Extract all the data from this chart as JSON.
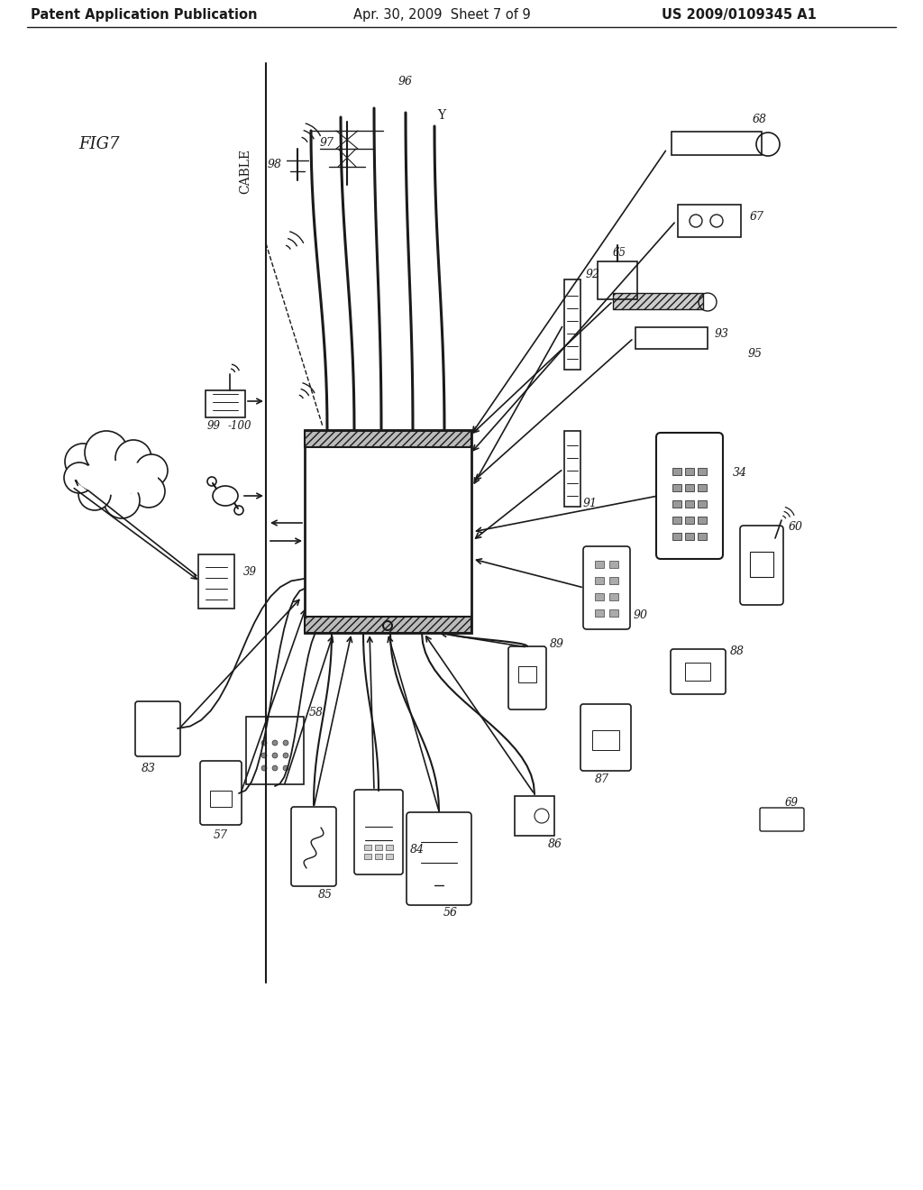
{
  "header_left": "Patent Application Publication",
  "header_mid": "Apr. 30, 2009  Sheet 7 of 9",
  "header_right": "US 2009/0109345 A1",
  "fig_label": "FIG7",
  "background_color": "#ffffff",
  "line_color": "#1a1a1a",
  "text_color": "#1a1a1a",
  "header_fontsize": 11,
  "label_fontsize": 9
}
